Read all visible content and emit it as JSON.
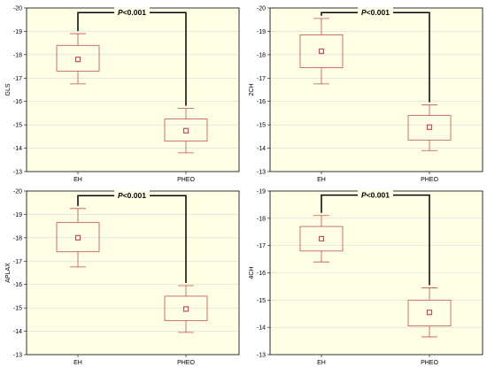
{
  "colors": {
    "plot_bg": "#ffffe6",
    "box_stroke": "#c0504d",
    "mean_marker": "#c0504d",
    "grid": "#d9d9d9",
    "bracket": "#000000"
  },
  "chart_data": [
    {
      "type": "box",
      "ylabel": "GLS",
      "categories": [
        "EH",
        "PHEO"
      ],
      "ylim": [
        -13,
        -20
      ],
      "yticks": [
        -20,
        -19,
        -18,
        -17,
        -16,
        -15,
        -14,
        -13
      ],
      "boxes": [
        {
          "category": "EH",
          "mean": -17.8,
          "box_low": -17.3,
          "box_high": -18.4,
          "whisker_low": -16.75,
          "whisker_high": -18.9
        },
        {
          "category": "PHEO",
          "mean": -14.75,
          "box_low": -14.3,
          "box_high": -15.25,
          "whisker_low": -13.8,
          "whisker_high": -15.7
        }
      ],
      "significance": {
        "label_italic": "P",
        "label_rest": "<0.001",
        "bracket_y": -19.8
      },
      "grid": true
    },
    {
      "type": "box",
      "ylabel": "2CH",
      "categories": [
        "EH",
        "PHEO"
      ],
      "ylim": [
        -13,
        -20
      ],
      "yticks": [
        -20,
        -19,
        -18,
        -17,
        -16,
        -15,
        -14,
        -13
      ],
      "boxes": [
        {
          "category": "EH",
          "mean": -18.15,
          "box_low": -17.45,
          "box_high": -18.85,
          "whisker_low": -16.75,
          "whisker_high": -19.55
        },
        {
          "category": "PHEO",
          "mean": -14.9,
          "box_low": -14.35,
          "box_high": -15.4,
          "whisker_low": -13.9,
          "whisker_high": -15.85
        }
      ],
      "significance": {
        "label_italic": "P",
        "label_rest": "<0.001",
        "bracket_y": -19.8
      },
      "grid": true
    },
    {
      "type": "box",
      "ylabel": "APLAX",
      "categories": [
        "EH",
        "PHEO"
      ],
      "ylim": [
        -13,
        -20
      ],
      "yticks": [
        -20,
        -19,
        -18,
        -17,
        -16,
        -15,
        -14,
        -13
      ],
      "boxes": [
        {
          "category": "EH",
          "mean": -18.0,
          "box_low": -17.4,
          "box_high": -18.65,
          "whisker_low": -16.75,
          "whisker_high": -19.25
        },
        {
          "category": "PHEO",
          "mean": -14.95,
          "box_low": -14.45,
          "box_high": -15.5,
          "whisker_low": -13.95,
          "whisker_high": -15.95
        }
      ],
      "significance": {
        "label_italic": "P",
        "label_rest": "<0.001",
        "bracket_y": -19.8
      },
      "grid": true
    },
    {
      "type": "box",
      "ylabel": "4CH",
      "categories": [
        "EH",
        "PHEO"
      ],
      "ylim": [
        -13,
        -19
      ],
      "yticks": [
        -19,
        -18,
        -17,
        -16,
        -15,
        -14,
        -13
      ],
      "boxes": [
        {
          "category": "EH",
          "mean": -17.25,
          "box_low": -16.8,
          "box_high": -17.7,
          "whisker_low": -16.4,
          "whisker_high": -18.1
        },
        {
          "category": "PHEO",
          "mean": -14.55,
          "box_low": -14.05,
          "box_high": -15.0,
          "whisker_low": -13.65,
          "whisker_high": -15.45
        }
      ],
      "significance": {
        "label_italic": "P",
        "label_rest": "<0.001",
        "bracket_y": -18.85
      },
      "grid": true
    }
  ]
}
